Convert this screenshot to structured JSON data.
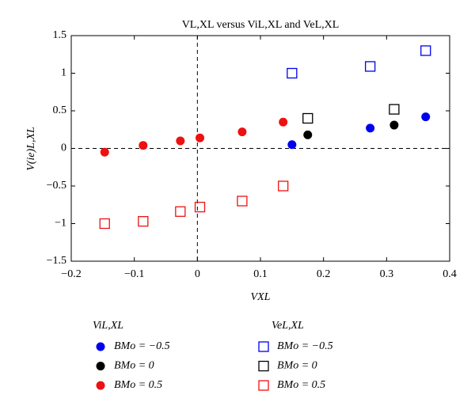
{
  "chart_data": {
    "type": "scatter",
    "title": "VL,XL versus ViL,XL and VeL,XL",
    "x_label": "VXL",
    "y_label": "V(ie)L,XL",
    "xlim": [
      -0.2,
      0.4
    ],
    "xticks": [
      {
        "value": -0.2,
        "label": "−0.2"
      },
      {
        "value": -0.1,
        "label": "−0.1"
      },
      0,
      0.1,
      0.2,
      0.3,
      0.4
    ],
    "ylim": [
      -1.5,
      1.5
    ],
    "yticks": [
      {
        "value": -1.5,
        "label": "−1.5"
      },
      {
        "value": -1,
        "label": "−1"
      },
      {
        "value": -0.5,
        "label": "−0.5"
      },
      0,
      0.5,
      1,
      1.5
    ],
    "groups": [
      {
        "title": "ViL,XL",
        "marker": "circle",
        "series": [
          {
            "name": "BMo = −0.5",
            "color": "#0000ee",
            "x": [
              0.15,
              0.274,
              0.362
            ],
            "values": [
              0.05,
              0.27,
              0.42
            ]
          },
          {
            "name": "BMo = 0",
            "color": "#000000",
            "x": [
              0.175,
              0.312
            ],
            "values": [
              0.18,
              0.31
            ]
          },
          {
            "name": "BMo = 0.5",
            "color": "#ee1111",
            "x": [
              -0.147,
              -0.086,
              -0.027,
              0.004,
              0.071,
              0.136
            ],
            "values": [
              -0.05,
              0.04,
              0.1,
              0.14,
              0.22,
              0.35
            ]
          }
        ]
      },
      {
        "title": "VeL,XL",
        "marker": "square",
        "series": [
          {
            "name": "BMo = −0.5",
            "color": "#0000ee",
            "x": [
              0.15,
              0.274,
              0.362
            ],
            "values": [
              1.0,
              1.09,
              1.3
            ]
          },
          {
            "name": "BMo = 0",
            "color": "#000000",
            "x": [
              0.175,
              0.312
            ],
            "values": [
              0.4,
              0.52
            ]
          },
          {
            "name": "BMo = 0.5",
            "color": "#ee1111",
            "x": [
              -0.147,
              -0.086,
              -0.027,
              0.004,
              0.071,
              0.136
            ],
            "values": [
              -1.0,
              -0.97,
              -0.84,
              -0.78,
              -0.7,
              -0.5
            ]
          }
        ]
      }
    ]
  }
}
